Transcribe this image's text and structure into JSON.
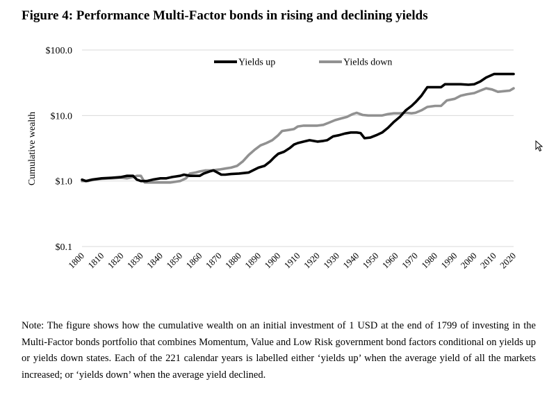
{
  "figure": {
    "title": "Figure 4: Performance Multi-Factor bonds in rising and declining yields",
    "note": "Note: The figure shows how the cumulative wealth on an initial investment of 1 USD at the end of 1799 of investing in the Multi-Factor bonds portfolio that combines Momentum, Value and Low Risk government bond factors conditional on yields up or yields down states. Each of the 221 calendar years is labelled either ‘yields up’ when the average yield of all the markets increased; or ‘yields down’ when the average yield declined."
  },
  "chart_data": {
    "type": "line",
    "title": "",
    "xlabel": "",
    "ylabel": "Cumulative wealth",
    "yscale": "log",
    "ylim": [
      0.1,
      100
    ],
    "xlim": [
      1800,
      2020
    ],
    "yticks": [
      {
        "value": 100,
        "label": "$100.0"
      },
      {
        "value": 10,
        "label": "$10.0"
      },
      {
        "value": 1,
        "label": "$1.0"
      },
      {
        "value": 0.1,
        "label": "$0.1"
      }
    ],
    "xticks": [
      "1800",
      "1810",
      "1820",
      "1830",
      "1840",
      "1850",
      "1860",
      "1870",
      "1880",
      "1890",
      "1900",
      "1910",
      "1920",
      "1930",
      "1940",
      "1950",
      "1960",
      "1970",
      "1980",
      "1990",
      "2000",
      "2010",
      "2020"
    ],
    "grid": "horizontal",
    "legend_position": "top",
    "series": [
      {
        "name": "Yields up",
        "color": "#000000",
        "points": [
          [
            1800,
            1.05
          ],
          [
            1802,
            1.0
          ],
          [
            1805,
            1.05
          ],
          [
            1810,
            1.1
          ],
          [
            1815,
            1.12
          ],
          [
            1820,
            1.15
          ],
          [
            1823,
            1.2
          ],
          [
            1826,
            1.2
          ],
          [
            1828,
            1.05
          ],
          [
            1830,
            1.0
          ],
          [
            1833,
            1.0
          ],
          [
            1836,
            1.05
          ],
          [
            1840,
            1.1
          ],
          [
            1843,
            1.1
          ],
          [
            1846,
            1.15
          ],
          [
            1850,
            1.2
          ],
          [
            1852,
            1.25
          ],
          [
            1855,
            1.2
          ],
          [
            1858,
            1.2
          ],
          [
            1860,
            1.2
          ],
          [
            1862,
            1.3
          ],
          [
            1865,
            1.4
          ],
          [
            1867,
            1.45
          ],
          [
            1869,
            1.35
          ],
          [
            1871,
            1.25
          ],
          [
            1873,
            1.25
          ],
          [
            1876,
            1.28
          ],
          [
            1880,
            1.3
          ],
          [
            1885,
            1.35
          ],
          [
            1888,
            1.5
          ],
          [
            1890,
            1.6
          ],
          [
            1893,
            1.7
          ],
          [
            1896,
            2.0
          ],
          [
            1898,
            2.3
          ],
          [
            1900,
            2.6
          ],
          [
            1903,
            2.8
          ],
          [
            1906,
            3.2
          ],
          [
            1908,
            3.6
          ],
          [
            1910,
            3.8
          ],
          [
            1913,
            4.0
          ],
          [
            1916,
            4.2
          ],
          [
            1918,
            4.1
          ],
          [
            1920,
            4.0
          ],
          [
            1923,
            4.1
          ],
          [
            1925,
            4.2
          ],
          [
            1928,
            4.8
          ],
          [
            1931,
            5.0
          ],
          [
            1934,
            5.3
          ],
          [
            1937,
            5.5
          ],
          [
            1940,
            5.5
          ],
          [
            1942,
            5.4
          ],
          [
            1944,
            4.5
          ],
          [
            1947,
            4.6
          ],
          [
            1950,
            5.0
          ],
          [
            1953,
            5.5
          ],
          [
            1956,
            6.5
          ],
          [
            1959,
            8.0
          ],
          [
            1962,
            9.5
          ],
          [
            1965,
            12.0
          ],
          [
            1968,
            14.0
          ],
          [
            1970,
            16.0
          ],
          [
            1973,
            20.0
          ],
          [
            1976,
            27.0
          ],
          [
            1980,
            27.0
          ],
          [
            1983,
            27.0
          ],
          [
            1985,
            30.0
          ],
          [
            1990,
            30.0
          ],
          [
            1993,
            30.0
          ],
          [
            1997,
            29.5
          ],
          [
            2000,
            30.0
          ],
          [
            2003,
            33.0
          ],
          [
            2006,
            38.0
          ],
          [
            2010,
            43.0
          ],
          [
            2015,
            43.0
          ],
          [
            2020,
            43.0
          ]
        ]
      },
      {
        "name": "Yields down",
        "color": "#919191",
        "points": [
          [
            1800,
            1.0
          ],
          [
            1803,
            1.0
          ],
          [
            1806,
            1.05
          ],
          [
            1810,
            1.08
          ],
          [
            1815,
            1.1
          ],
          [
            1820,
            1.12
          ],
          [
            1823,
            1.1
          ],
          [
            1826,
            1.15
          ],
          [
            1828,
            1.2
          ],
          [
            1830,
            1.2
          ],
          [
            1832,
            0.95
          ],
          [
            1835,
            0.95
          ],
          [
            1840,
            0.95
          ],
          [
            1845,
            0.95
          ],
          [
            1850,
            1.0
          ],
          [
            1853,
            1.1
          ],
          [
            1855,
            1.3
          ],
          [
            1858,
            1.35
          ],
          [
            1860,
            1.4
          ],
          [
            1863,
            1.45
          ],
          [
            1866,
            1.45
          ],
          [
            1870,
            1.5
          ],
          [
            1873,
            1.55
          ],
          [
            1876,
            1.6
          ],
          [
            1879,
            1.7
          ],
          [
            1882,
            2.0
          ],
          [
            1885,
            2.5
          ],
          [
            1888,
            3.0
          ],
          [
            1891,
            3.5
          ],
          [
            1894,
            3.8
          ],
          [
            1897,
            4.2
          ],
          [
            1900,
            5.0
          ],
          [
            1902,
            5.8
          ],
          [
            1905,
            6.0
          ],
          [
            1908,
            6.2
          ],
          [
            1910,
            6.8
          ],
          [
            1913,
            7.0
          ],
          [
            1916,
            7.0
          ],
          [
            1920,
            7.0
          ],
          [
            1923,
            7.2
          ],
          [
            1926,
            7.8
          ],
          [
            1929,
            8.5
          ],
          [
            1932,
            9.0
          ],
          [
            1935,
            9.5
          ],
          [
            1938,
            10.5
          ],
          [
            1940,
            11.0
          ],
          [
            1943,
            10.2
          ],
          [
            1946,
            10.0
          ],
          [
            1950,
            10.0
          ],
          [
            1953,
            10.0
          ],
          [
            1956,
            10.5
          ],
          [
            1959,
            10.8
          ],
          [
            1962,
            10.8
          ],
          [
            1965,
            11.0
          ],
          [
            1968,
            10.8
          ],
          [
            1970,
            11.0
          ],
          [
            1973,
            12.0
          ],
          [
            1976,
            13.5
          ],
          [
            1980,
            14.0
          ],
          [
            1983,
            14.0
          ],
          [
            1986,
            17.0
          ],
          [
            1990,
            18.0
          ],
          [
            1993,
            20.0
          ],
          [
            1996,
            21.0
          ],
          [
            2000,
            22.0
          ],
          [
            2003,
            24.0
          ],
          [
            2006,
            26.0
          ],
          [
            2009,
            25.0
          ],
          [
            2012,
            23.0
          ],
          [
            2015,
            23.5
          ],
          [
            2018,
            24.0
          ],
          [
            2020,
            26.0
          ]
        ]
      }
    ]
  },
  "cursor": {
    "icon": "mouse-pointer-icon"
  }
}
